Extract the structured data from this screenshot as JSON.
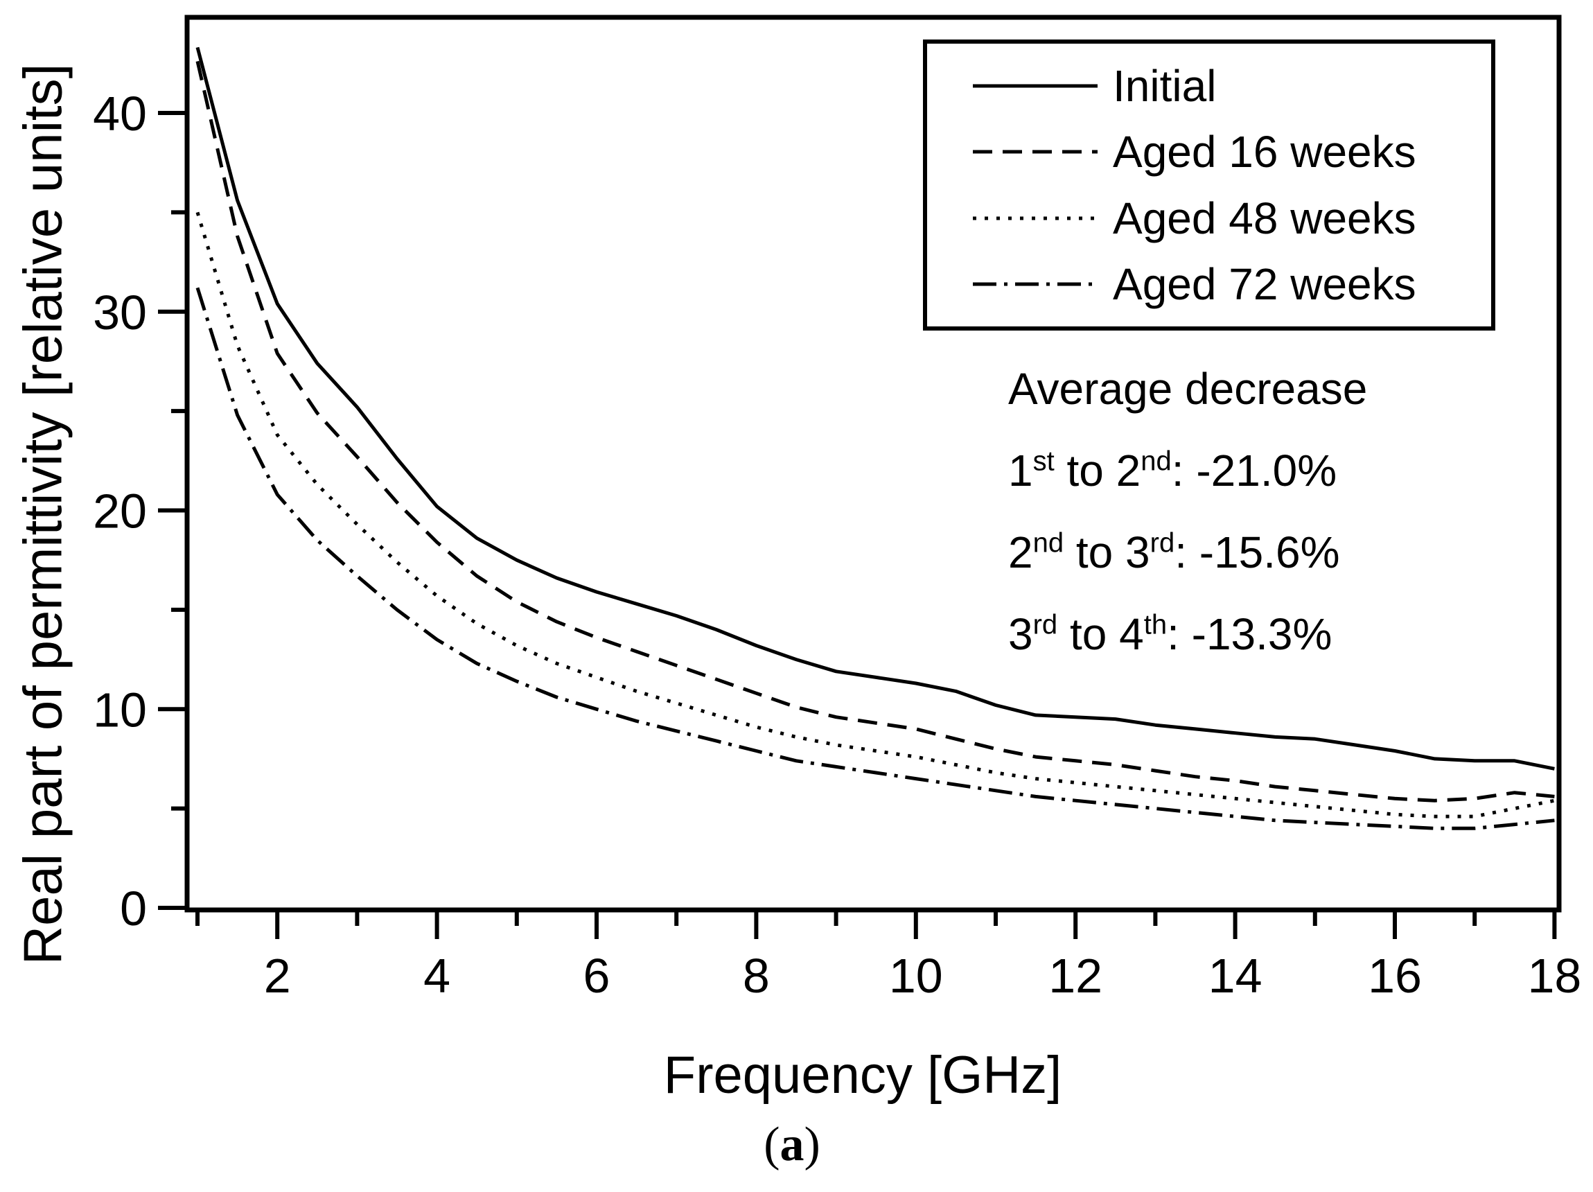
{
  "figure": {
    "caption_open": "(",
    "caption_letter": "a",
    "caption_close": ")"
  },
  "colors": {
    "line": "#000000",
    "background": "#ffffff"
  },
  "annotation": {
    "title": "Average decrease",
    "rows": [
      {
        "a": "1",
        "asup": "st",
        "mid": " to 2",
        "midsup": "nd",
        "tail": ": -21.0%"
      },
      {
        "a": "2",
        "asup": "nd",
        "mid": " to 3",
        "midsup": "rd",
        "tail": ": -15.6%"
      },
      {
        "a": "3",
        "asup": "rd",
        "mid": " to 4",
        "midsup": "th",
        "tail": ": -13.3%"
      }
    ]
  },
  "chart_data": {
    "type": "line",
    "title": "",
    "xlabel": "Frequency [GHz]",
    "ylabel": "Real part of permittivity [relative units]",
    "xlim": [
      1,
      18.2
    ],
    "ylim": [
      0,
      44.8
    ],
    "grid": false,
    "legend_position": "top-right",
    "x_major_ticks": [
      2,
      4,
      6,
      8,
      10,
      12,
      14,
      16,
      18
    ],
    "x_minor_ticks": [
      1,
      3,
      5,
      7,
      9,
      11,
      13,
      15,
      17
    ],
    "y_major_ticks": [
      0,
      10,
      20,
      30,
      40
    ],
    "y_minor_ticks": [
      5,
      15,
      25,
      35
    ],
    "x": [
      1,
      1.5,
      2,
      2.5,
      3,
      3.5,
      4,
      4.5,
      5,
      5.5,
      6,
      6.5,
      7,
      7.5,
      8,
      8.5,
      9,
      9.5,
      10,
      10.5,
      11,
      11.5,
      12,
      12.5,
      13,
      13.5,
      14,
      14.5,
      15,
      15.5,
      16,
      16.5,
      17,
      17.5,
      18
    ],
    "series": [
      {
        "name": "Initial",
        "style": "solid",
        "values": [
          43.3,
          35.6,
          30.4,
          27.4,
          25.2,
          22.6,
          20.2,
          18.6,
          17.5,
          16.6,
          15.9,
          15.3,
          14.7,
          14.0,
          13.2,
          12.5,
          11.9,
          11.6,
          11.3,
          10.9,
          10.2,
          9.7,
          9.6,
          9.5,
          9.2,
          9.0,
          8.8,
          8.6,
          8.5,
          8.2,
          7.9,
          7.5,
          7.4,
          7.4,
          7.0
        ]
      },
      {
        "name": "Aged 16 weeks",
        "style": "dashed",
        "values": [
          42.6,
          33.8,
          27.9,
          24.9,
          22.7,
          20.4,
          18.4,
          16.7,
          15.4,
          14.4,
          13.6,
          12.9,
          12.2,
          11.5,
          10.8,
          10.1,
          9.6,
          9.3,
          9.0,
          8.5,
          8.0,
          7.6,
          7.4,
          7.2,
          6.9,
          6.6,
          6.4,
          6.1,
          5.9,
          5.7,
          5.5,
          5.4,
          5.5,
          5.8,
          5.6
        ]
      },
      {
        "name": "Aged 48 weeks",
        "style": "dotted",
        "values": [
          35.0,
          28.3,
          23.8,
          21.3,
          19.3,
          17.4,
          15.7,
          14.3,
          13.2,
          12.3,
          11.6,
          10.9,
          10.3,
          9.7,
          9.1,
          8.6,
          8.2,
          7.9,
          7.6,
          7.2,
          6.8,
          6.5,
          6.3,
          6.1,
          5.9,
          5.7,
          5.5,
          5.3,
          5.1,
          4.9,
          4.7,
          4.6,
          4.6,
          5.0,
          5.4
        ]
      },
      {
        "name": "Aged 72 weeks",
        "style": "dashdot",
        "values": [
          31.2,
          24.8,
          20.8,
          18.5,
          16.7,
          15.0,
          13.5,
          12.3,
          11.4,
          10.6,
          10.0,
          9.4,
          8.9,
          8.4,
          7.9,
          7.4,
          7.1,
          6.8,
          6.5,
          6.2,
          5.9,
          5.6,
          5.4,
          5.2,
          5.0,
          4.8,
          4.6,
          4.4,
          4.3,
          4.2,
          4.1,
          4.0,
          4.0,
          4.2,
          4.4
        ]
      }
    ],
    "annotations": [
      "Average decrease",
      "1st to 2nd: -21.0%",
      "2nd to 3rd: -15.6%",
      "3rd to 4th: -13.3%"
    ]
  }
}
